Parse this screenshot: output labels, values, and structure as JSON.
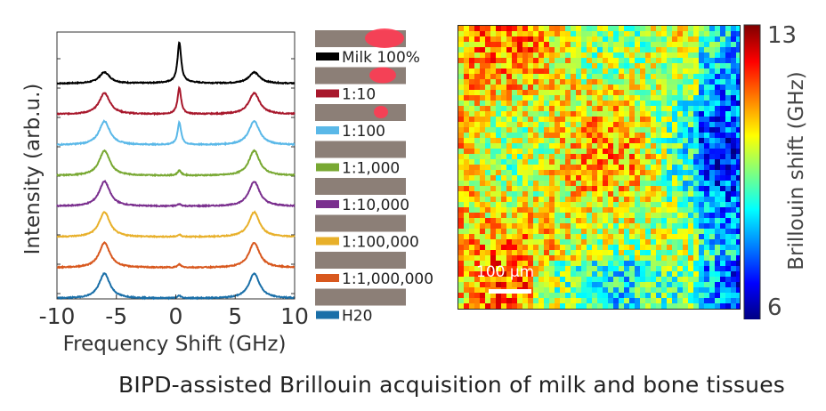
{
  "caption": "BIPD-assisted Brillouin acquisition of milk and bone tissues",
  "chart_data": [
    {
      "type": "line",
      "xlabel": "Frequency Shift (GHz)",
      "ylabel": "Intensity (arb.u.)",
      "xlim": [
        -10,
        10
      ],
      "x_ticks": [
        "-10",
        "-5",
        "0",
        "5",
        "10"
      ],
      "grid": false,
      "legend_position": "right",
      "peaks_GHz": [
        -6.0,
        0.3,
        6.6
      ],
      "series": [
        {
          "name": "Milk 100%",
          "color": "#000000",
          "side_peak": 0.45,
          "center_peak": 1.6
        },
        {
          "name": "1:10",
          "color": "#a8182c",
          "side_peak": 0.85,
          "center_peak": 1.05
        },
        {
          "name": "1:100",
          "color": "#5ab8e8",
          "side_peak": 0.95,
          "center_peak": 0.9
        },
        {
          "name": "1:1,000",
          "color": "#78a832",
          "side_peak": 1.0,
          "center_peak": 0.2
        },
        {
          "name": "1:10,000",
          "color": "#7a2f8e",
          "side_peak": 1.0,
          "center_peak": 0.08
        },
        {
          "name": "1:100,000",
          "color": "#e8b02a",
          "side_peak": 1.0,
          "center_peak": 0.08
        },
        {
          "name": "1:1,000,000",
          "color": "#d8581e",
          "side_peak": 1.0,
          "center_peak": 0.12
        },
        {
          "name": "H20",
          "color": "#1a6fa8",
          "side_peak": 1.0,
          "center_peak": 0.1
        }
      ]
    },
    {
      "type": "heatmap",
      "colorbar_label": "Brillouin shift (GHz)",
      "colorbar_range": [
        6,
        13
      ],
      "colorbar_ticks": [
        "13",
        "6"
      ],
      "scale_bar": "100 μm"
    }
  ]
}
